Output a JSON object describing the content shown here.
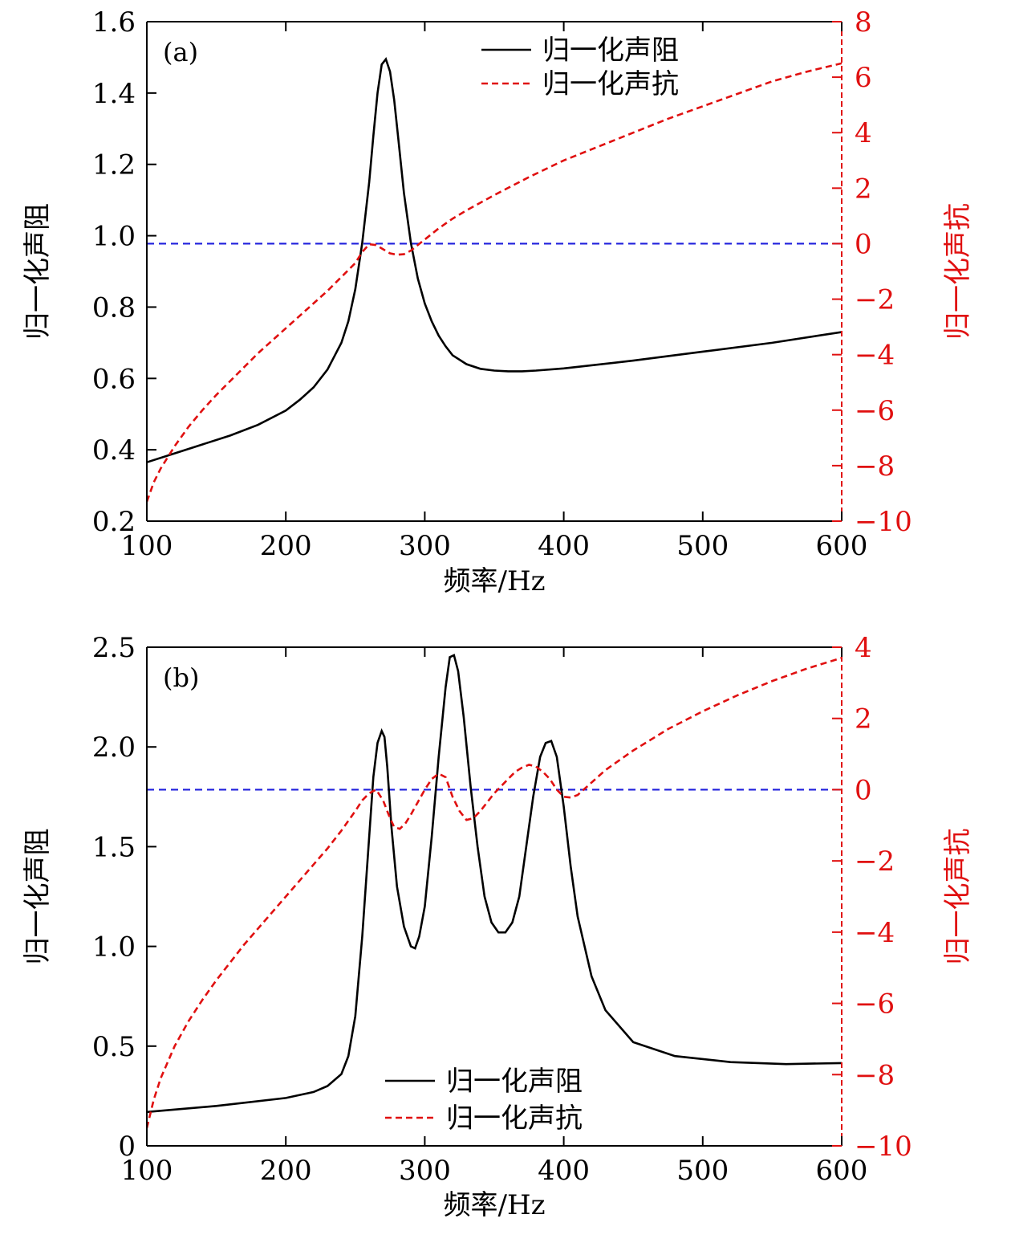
{
  "chart_data": [
    {
      "type": "line",
      "panel_label": "(a)",
      "xlabel": "频率/Hz",
      "ylabel_left": "归一化声阻",
      "ylabel_right": "归一化声抗",
      "xlim": [
        100,
        600
      ],
      "xticks": [
        100,
        200,
        300,
        400,
        500,
        600
      ],
      "ylim_left": [
        0.2,
        1.6
      ],
      "yticks_left": [
        "0.2",
        "0.4",
        "0.6",
        "0.8",
        "1.0",
        "1.2",
        "1.4",
        "1.6"
      ],
      "ylim_right": [
        -10,
        8
      ],
      "yticks_right": [
        "−10",
        "−8",
        "−6",
        "−4",
        "−2",
        "0",
        "2",
        "4",
        "6",
        "8"
      ],
      "legend_position": "top-center",
      "reference_line": {
        "axis": "right",
        "y": 0,
        "color": "#1f1fdc"
      },
      "series": [
        {
          "name": "归一化声阻",
          "axis": "left",
          "color": "#000000",
          "dash": "solid",
          "x": [
            100,
            120,
            140,
            160,
            180,
            200,
            210,
            220,
            230,
            240,
            245,
            250,
            255,
            260,
            263,
            266,
            269,
            272,
            275,
            278,
            281,
            285,
            290,
            295,
            300,
            305,
            310,
            315,
            320,
            330,
            340,
            350,
            360,
            370,
            380,
            400,
            450,
            500,
            550,
            600
          ],
          "y": [
            0.365,
            0.39,
            0.415,
            0.44,
            0.47,
            0.51,
            0.54,
            0.575,
            0.625,
            0.7,
            0.76,
            0.85,
            0.98,
            1.15,
            1.28,
            1.4,
            1.48,
            1.495,
            1.46,
            1.38,
            1.27,
            1.12,
            0.98,
            0.88,
            0.81,
            0.76,
            0.72,
            0.69,
            0.665,
            0.64,
            0.627,
            0.622,
            0.62,
            0.62,
            0.622,
            0.628,
            0.65,
            0.675,
            0.7,
            0.73
          ]
        },
        {
          "name": "归一化声抗",
          "axis": "right",
          "color": "#e01010",
          "dash": "dashed",
          "x": [
            100,
            105,
            110,
            120,
            130,
            140,
            150,
            160,
            170,
            180,
            190,
            200,
            210,
            220,
            230,
            240,
            250,
            255,
            260,
            265,
            270,
            275,
            280,
            285,
            290,
            295,
            300,
            310,
            320,
            330,
            350,
            375,
            400,
            425,
            450,
            475,
            500,
            525,
            550,
            575,
            600
          ],
          "y": [
            -9.3,
            -8.6,
            -8.1,
            -7.3,
            -6.6,
            -6.0,
            -5.45,
            -4.95,
            -4.45,
            -3.95,
            -3.5,
            -3.05,
            -2.6,
            -2.15,
            -1.7,
            -1.2,
            -0.7,
            -0.3,
            -0.02,
            -0.05,
            -0.2,
            -0.35,
            -0.4,
            -0.38,
            -0.25,
            -0.05,
            0.15,
            0.55,
            0.9,
            1.2,
            1.75,
            2.4,
            3.0,
            3.5,
            4.0,
            4.5,
            4.95,
            5.4,
            5.85,
            6.2,
            6.5
          ]
        }
      ]
    },
    {
      "type": "line",
      "panel_label": "(b)",
      "xlabel": "频率/Hz",
      "ylabel_left": "归一化声阻",
      "ylabel_right": "归一化声抗",
      "xlim": [
        100,
        600
      ],
      "xticks": [
        100,
        200,
        300,
        400,
        500,
        600
      ],
      "ylim_left": [
        0,
        2.5
      ],
      "yticks_left": [
        "0",
        "0.5",
        "1.0",
        "1.5",
        "2.0",
        "2.5"
      ],
      "ylim_right": [
        -10,
        4
      ],
      "yticks_right": [
        "−10",
        "−8",
        "−6",
        "−4",
        "−2",
        "0",
        "2",
        "4"
      ],
      "legend_position": "bottom-center",
      "reference_line": {
        "axis": "right",
        "y": 0,
        "color": "#1f1fdc"
      },
      "series": [
        {
          "name": "归一化声阻",
          "axis": "left",
          "color": "#000000",
          "dash": "solid",
          "x": [
            100,
            150,
            200,
            220,
            230,
            240,
            245,
            250,
            255,
            260,
            263,
            266,
            269,
            271,
            273,
            276,
            280,
            285,
            290,
            293,
            296,
            300,
            305,
            310,
            315,
            318,
            321,
            324,
            328,
            333,
            338,
            343,
            348,
            353,
            358,
            363,
            368,
            373,
            378,
            383,
            387,
            391,
            395,
            400,
            405,
            410,
            420,
            430,
            450,
            480,
            520,
            560,
            600
          ],
          "y": [
            0.17,
            0.2,
            0.24,
            0.27,
            0.3,
            0.36,
            0.45,
            0.65,
            1.05,
            1.55,
            1.85,
            2.02,
            2.08,
            2.05,
            1.9,
            1.6,
            1.3,
            1.1,
            1.0,
            0.99,
            1.05,
            1.2,
            1.55,
            1.95,
            2.3,
            2.45,
            2.46,
            2.38,
            2.15,
            1.8,
            1.5,
            1.25,
            1.12,
            1.07,
            1.07,
            1.12,
            1.25,
            1.5,
            1.75,
            1.95,
            2.02,
            2.03,
            1.95,
            1.7,
            1.4,
            1.15,
            0.85,
            0.68,
            0.52,
            0.45,
            0.42,
            0.41,
            0.415
          ]
        },
        {
          "name": "归一化声抗",
          "axis": "right",
          "color": "#e01010",
          "dash": "dashed",
          "x": [
            100,
            105,
            110,
            120,
            130,
            140,
            150,
            160,
            170,
            180,
            190,
            200,
            210,
            220,
            230,
            240,
            250,
            255,
            260,
            265,
            270,
            275,
            278,
            282,
            286,
            290,
            295,
            300,
            305,
            310,
            315,
            320,
            325,
            330,
            335,
            340,
            345,
            350,
            355,
            360,
            365,
            370,
            375,
            380,
            385,
            390,
            395,
            400,
            405,
            410,
            420,
            430,
            450,
            475,
            500,
            525,
            550,
            575,
            600
          ],
          "y": [
            -9.5,
            -8.7,
            -8.1,
            -7.2,
            -6.5,
            -5.9,
            -5.35,
            -4.85,
            -4.35,
            -3.9,
            -3.45,
            -3.0,
            -2.55,
            -2.1,
            -1.65,
            -1.15,
            -0.6,
            -0.3,
            -0.1,
            0.0,
            -0.3,
            -0.8,
            -1.05,
            -1.1,
            -0.95,
            -0.7,
            -0.35,
            0.0,
            0.3,
            0.45,
            0.35,
            -0.2,
            -0.6,
            -0.85,
            -0.8,
            -0.6,
            -0.35,
            -0.1,
            0.1,
            0.3,
            0.5,
            0.62,
            0.7,
            0.65,
            0.5,
            0.3,
            0.0,
            -0.2,
            -0.22,
            -0.15,
            0.2,
            0.55,
            1.1,
            1.7,
            2.2,
            2.65,
            3.05,
            3.4,
            3.7
          ]
        }
      ]
    }
  ]
}
